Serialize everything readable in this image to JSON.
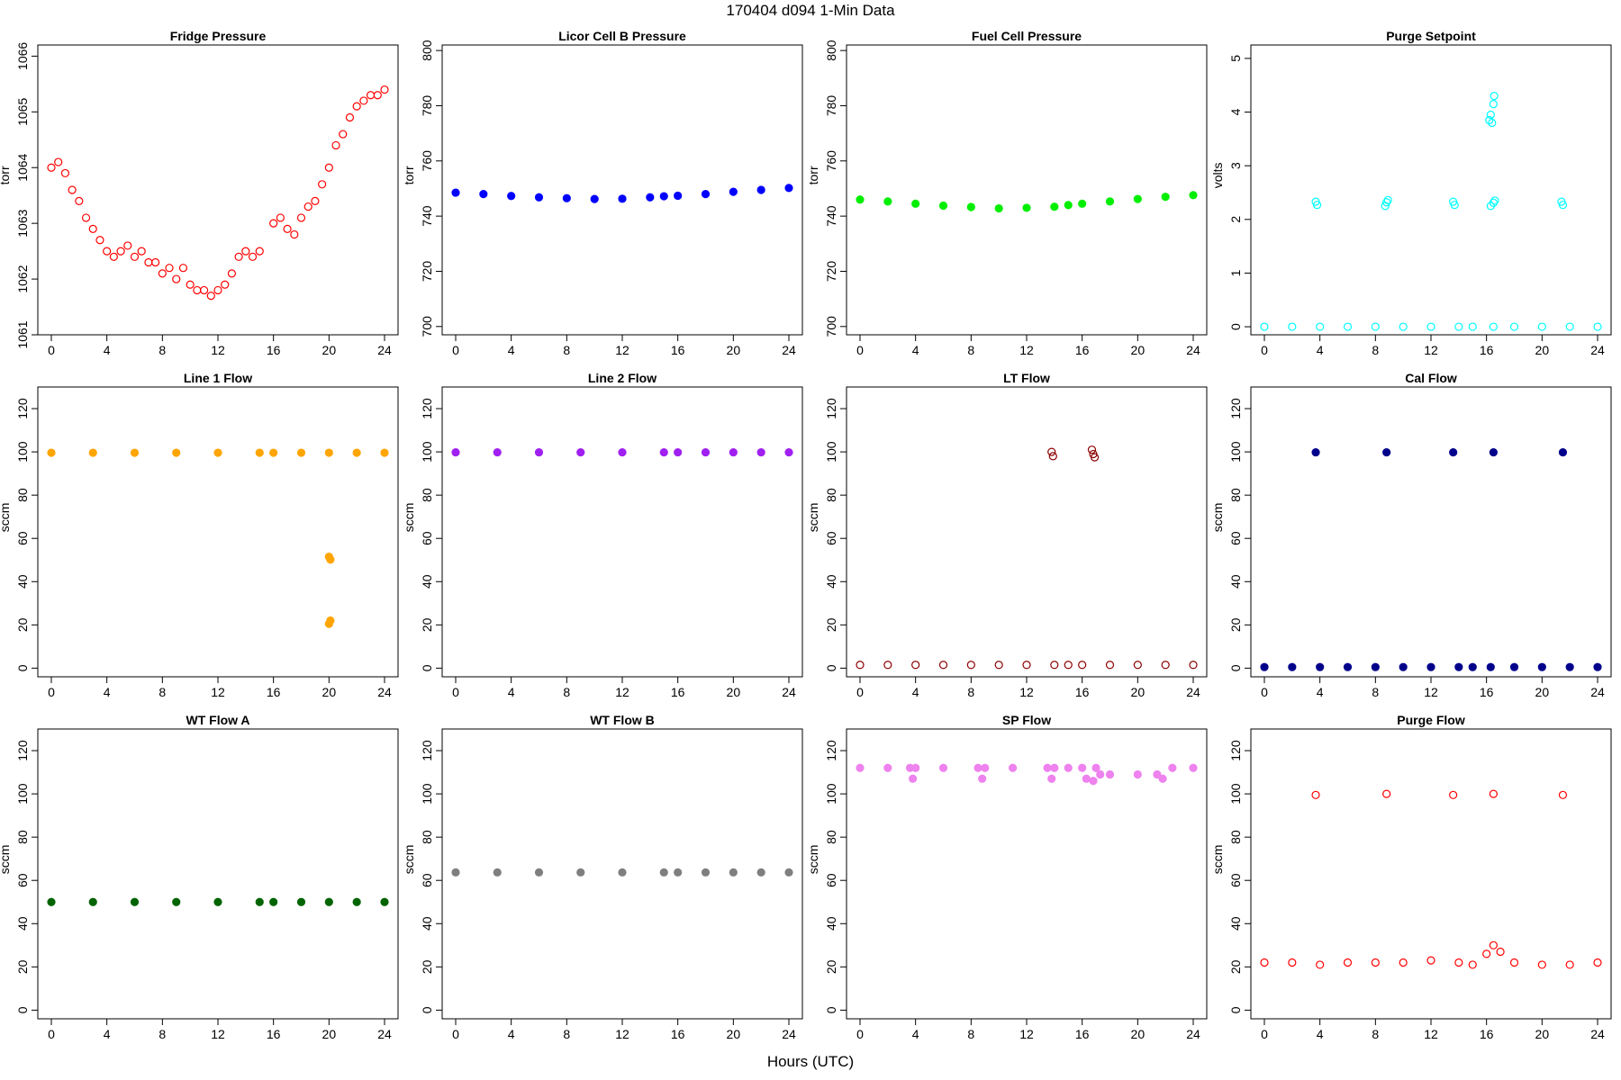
{
  "figure": {
    "title": "170404   d094   1-Min Data",
    "xlabel": "Hours (UTC)"
  },
  "chart_data": [
    {
      "type": "scatter",
      "title": "Fridge Pressure",
      "ylabel": "torr",
      "color": "#ff0000",
      "filled": false,
      "xlim": [
        0,
        24
      ],
      "ylim": [
        1061,
        1066.2
      ],
      "yticks": [
        1061,
        1062,
        1063,
        1064,
        1065,
        1066
      ],
      "x": [
        0,
        0.5,
        1,
        1.5,
        2,
        2.5,
        3,
        3.5,
        4,
        4.5,
        5,
        5.5,
        6,
        6.5,
        7,
        7.5,
        8,
        8.5,
        9,
        9.5,
        10,
        10.5,
        11,
        11.5,
        12,
        12.5,
        13,
        13.5,
        14,
        14.5,
        15,
        16,
        16.5,
        17,
        17.5,
        18,
        18.5,
        19,
        19.5,
        20,
        20.5,
        21,
        21.5,
        22,
        22.5,
        23,
        23.5,
        24
      ],
      "y": [
        1064.0,
        1064.1,
        1063.9,
        1063.6,
        1063.4,
        1063.1,
        1062.9,
        1062.7,
        1062.5,
        1062.4,
        1062.5,
        1062.6,
        1062.4,
        1062.5,
        1062.3,
        1062.3,
        1062.1,
        1062.2,
        1062.0,
        1062.2,
        1061.9,
        1061.8,
        1061.8,
        1061.7,
        1061.8,
        1061.9,
        1062.1,
        1062.4,
        1062.5,
        1062.4,
        1062.5,
        1063.0,
        1063.1,
        1062.9,
        1062.8,
        1063.1,
        1063.3,
        1063.4,
        1063.7,
        1064.0,
        1064.4,
        1064.6,
        1064.9,
        1065.1,
        1065.2,
        1065.3,
        1065.3,
        1065.4
      ]
    },
    {
      "type": "scatter",
      "title": "Licor Cell B Pressure",
      "ylabel": "torr",
      "color": "#0000ff",
      "filled": true,
      "xlim": [
        0,
        24
      ],
      "ylim": [
        697,
        802
      ],
      "yticks": [
        700,
        720,
        740,
        760,
        780,
        800
      ],
      "x": [
        0,
        2,
        4,
        6,
        8,
        10,
        12,
        14,
        15,
        16,
        18,
        20,
        22,
        24
      ],
      "y": [
        748.5,
        748,
        747.3,
        746.8,
        746.5,
        746.2,
        746.3,
        746.8,
        747.2,
        747.4,
        748,
        748.8,
        749.5,
        750.2
      ]
    },
    {
      "type": "scatter",
      "title": "Fuel Cell Pressure",
      "ylabel": "torr",
      "color": "#00ee00",
      "filled": true,
      "xlim": [
        0,
        24
      ],
      "ylim": [
        697,
        802
      ],
      "yticks": [
        700,
        720,
        740,
        760,
        780,
        800
      ],
      "x": [
        0,
        2,
        4,
        6,
        8,
        10,
        12,
        14,
        15,
        16,
        18,
        20,
        22,
        24
      ],
      "y": [
        746,
        745.3,
        744.5,
        743.8,
        743.3,
        742.8,
        743,
        743.4,
        744,
        744.5,
        745.3,
        746.2,
        747,
        747.6
      ]
    },
    {
      "type": "scatter",
      "title": "Purge Setpoint",
      "ylabel": "volts",
      "color": "#00ffff",
      "filled": false,
      "xlim": [
        0,
        24
      ],
      "ylim": [
        -0.15,
        5.25
      ],
      "yticks": [
        0,
        1,
        2,
        3,
        4,
        5
      ],
      "x": [
        0,
        2,
        4,
        6,
        8,
        10,
        12,
        14,
        15,
        16.5,
        18,
        20,
        22,
        24,
        3.7,
        3.8,
        8.7,
        8.8,
        8.9,
        13.6,
        13.7,
        16.3,
        16.5,
        16.6,
        21.4,
        21.5,
        16.2,
        16.3,
        16.4,
        16.5,
        16.55
      ],
      "y": [
        0,
        0,
        0,
        0,
        0,
        0,
        0,
        0,
        0,
        0,
        0,
        0,
        0,
        0,
        2.33,
        2.27,
        2.25,
        2.32,
        2.36,
        2.33,
        2.27,
        2.25,
        2.31,
        2.35,
        2.33,
        2.27,
        3.85,
        3.95,
        3.8,
        4.15,
        4.3
      ]
    },
    {
      "type": "scatter",
      "title": "Line 1 Flow",
      "ylabel": "sccm",
      "color": "#ffa500",
      "filled": true,
      "xlim": [
        0,
        24
      ],
      "ylim": [
        -4,
        130
      ],
      "yticks": [
        0,
        20,
        40,
        60,
        80,
        100,
        120
      ],
      "x": [
        0,
        3,
        6,
        9,
        12,
        15,
        16,
        18,
        20,
        22,
        24,
        20,
        20.1,
        20,
        20.1
      ],
      "y": [
        99.6,
        99.6,
        99.6,
        99.6,
        99.6,
        99.6,
        99.6,
        99.6,
        99.6,
        99.6,
        99.6,
        51.5,
        50.2,
        20.5,
        22
      ]
    },
    {
      "type": "scatter",
      "title": "Line 2 Flow",
      "ylabel": "sccm",
      "color": "#a020f0",
      "filled": true,
      "xlim": [
        0,
        24
      ],
      "ylim": [
        -4,
        130
      ],
      "yticks": [
        0,
        20,
        40,
        60,
        80,
        100,
        120
      ],
      "x": [
        0,
        3,
        6,
        9,
        12,
        15,
        16,
        18,
        20,
        22,
        24
      ],
      "y": [
        99.8,
        99.8,
        99.8,
        99.8,
        99.8,
        99.8,
        99.8,
        99.8,
        99.8,
        99.8,
        99.8
      ]
    },
    {
      "type": "scatter",
      "title": "LT Flow",
      "ylabel": "sccm",
      "color": "#8b0000",
      "filled": false,
      "xlim": [
        0,
        24
      ],
      "ylim": [
        -4,
        130
      ],
      "yticks": [
        0,
        20,
        40,
        60,
        80,
        100,
        120
      ],
      "x": [
        0,
        2,
        4,
        6,
        8,
        10,
        12,
        14,
        15,
        16,
        18,
        20,
        22,
        24,
        13.8,
        13.9,
        16.7,
        16.8,
        16.9
      ],
      "y": [
        1.5,
        1.5,
        1.5,
        1.5,
        1.5,
        1.5,
        1.5,
        1.5,
        1.5,
        1.5,
        1.5,
        1.5,
        1.5,
        1.5,
        100,
        98,
        101,
        99,
        97.5
      ]
    },
    {
      "type": "scatter",
      "title": "Cal Flow",
      "ylabel": "sccm",
      "color": "#00008b",
      "filled": true,
      "xlim": [
        0,
        24
      ],
      "ylim": [
        -4,
        130
      ],
      "yticks": [
        0,
        20,
        40,
        60,
        80,
        100,
        120
      ],
      "x": [
        0,
        2,
        4,
        6,
        8,
        10,
        12,
        14,
        15,
        16.3,
        18,
        20,
        22,
        24,
        3.7,
        8.8,
        13.6,
        16.5,
        21.5
      ],
      "y": [
        0.5,
        0.5,
        0.5,
        0.5,
        0.5,
        0.5,
        0.5,
        0.5,
        0.5,
        0.5,
        0.5,
        0.5,
        0.5,
        0.5,
        99.8,
        99.8,
        99.8,
        99.8,
        99.8
      ]
    },
    {
      "type": "scatter",
      "title": "WT Flow A",
      "ylabel": "sccm",
      "color": "#006400",
      "filled": true,
      "xlim": [
        0,
        24
      ],
      "ylim": [
        -4,
        130
      ],
      "yticks": [
        0,
        20,
        40,
        60,
        80,
        100,
        120
      ],
      "x": [
        0,
        3,
        6,
        9,
        12,
        15,
        16,
        18,
        20,
        22,
        24
      ],
      "y": [
        50,
        50,
        50,
        50,
        50,
        50,
        50,
        50,
        50,
        50,
        50
      ]
    },
    {
      "type": "scatter",
      "title": "WT Flow B",
      "ylabel": "sccm",
      "color": "#7f7f7f",
      "filled": true,
      "xlim": [
        0,
        24
      ],
      "ylim": [
        -4,
        130
      ],
      "yticks": [
        0,
        20,
        40,
        60,
        80,
        100,
        120
      ],
      "x": [
        0,
        3,
        6,
        9,
        12,
        15,
        16,
        18,
        20,
        22,
        24
      ],
      "y": [
        63.7,
        63.7,
        63.7,
        63.7,
        63.7,
        63.7,
        63.7,
        63.7,
        63.7,
        63.7,
        63.7
      ]
    },
    {
      "type": "scatter",
      "title": "SP Flow",
      "ylabel": "sccm",
      "color": "#ee82ee",
      "filled": true,
      "xlim": [
        0,
        24
      ],
      "ylim": [
        -4,
        130
      ],
      "yticks": [
        0,
        20,
        40,
        60,
        80,
        100,
        120
      ],
      "x": [
        0,
        2,
        3.6,
        3.8,
        4,
        6,
        8.5,
        8.8,
        9,
        11,
        13.5,
        13.8,
        14,
        15,
        16,
        16.3,
        16.8,
        17,
        17.3,
        18,
        20,
        21.4,
        21.8,
        22.5,
        24
      ],
      "y": [
        112,
        112,
        112,
        107,
        112,
        112,
        112,
        107,
        112,
        112,
        112,
        107,
        112,
        112,
        112,
        107,
        106,
        112,
        109,
        109,
        109,
        109,
        107,
        112,
        112
      ]
    },
    {
      "type": "scatter",
      "title": "Purge Flow",
      "ylabel": "sccm",
      "color": "#ff0000",
      "filled": false,
      "xlim": [
        0,
        24
      ],
      "ylim": [
        -4,
        130
      ],
      "yticks": [
        0,
        20,
        40,
        60,
        80,
        100,
        120
      ],
      "x": [
        0,
        2,
        4,
        6,
        8,
        10,
        12,
        14,
        15,
        16,
        16.5,
        17,
        18,
        20,
        22,
        24,
        3.7,
        8.8,
        13.6,
        16.5,
        21.5
      ],
      "y": [
        22,
        22,
        21,
        22,
        22,
        22,
        23,
        22,
        21,
        26,
        30,
        27,
        22,
        21,
        21,
        22,
        99.5,
        100,
        99.5,
        100,
        99.5
      ]
    }
  ]
}
